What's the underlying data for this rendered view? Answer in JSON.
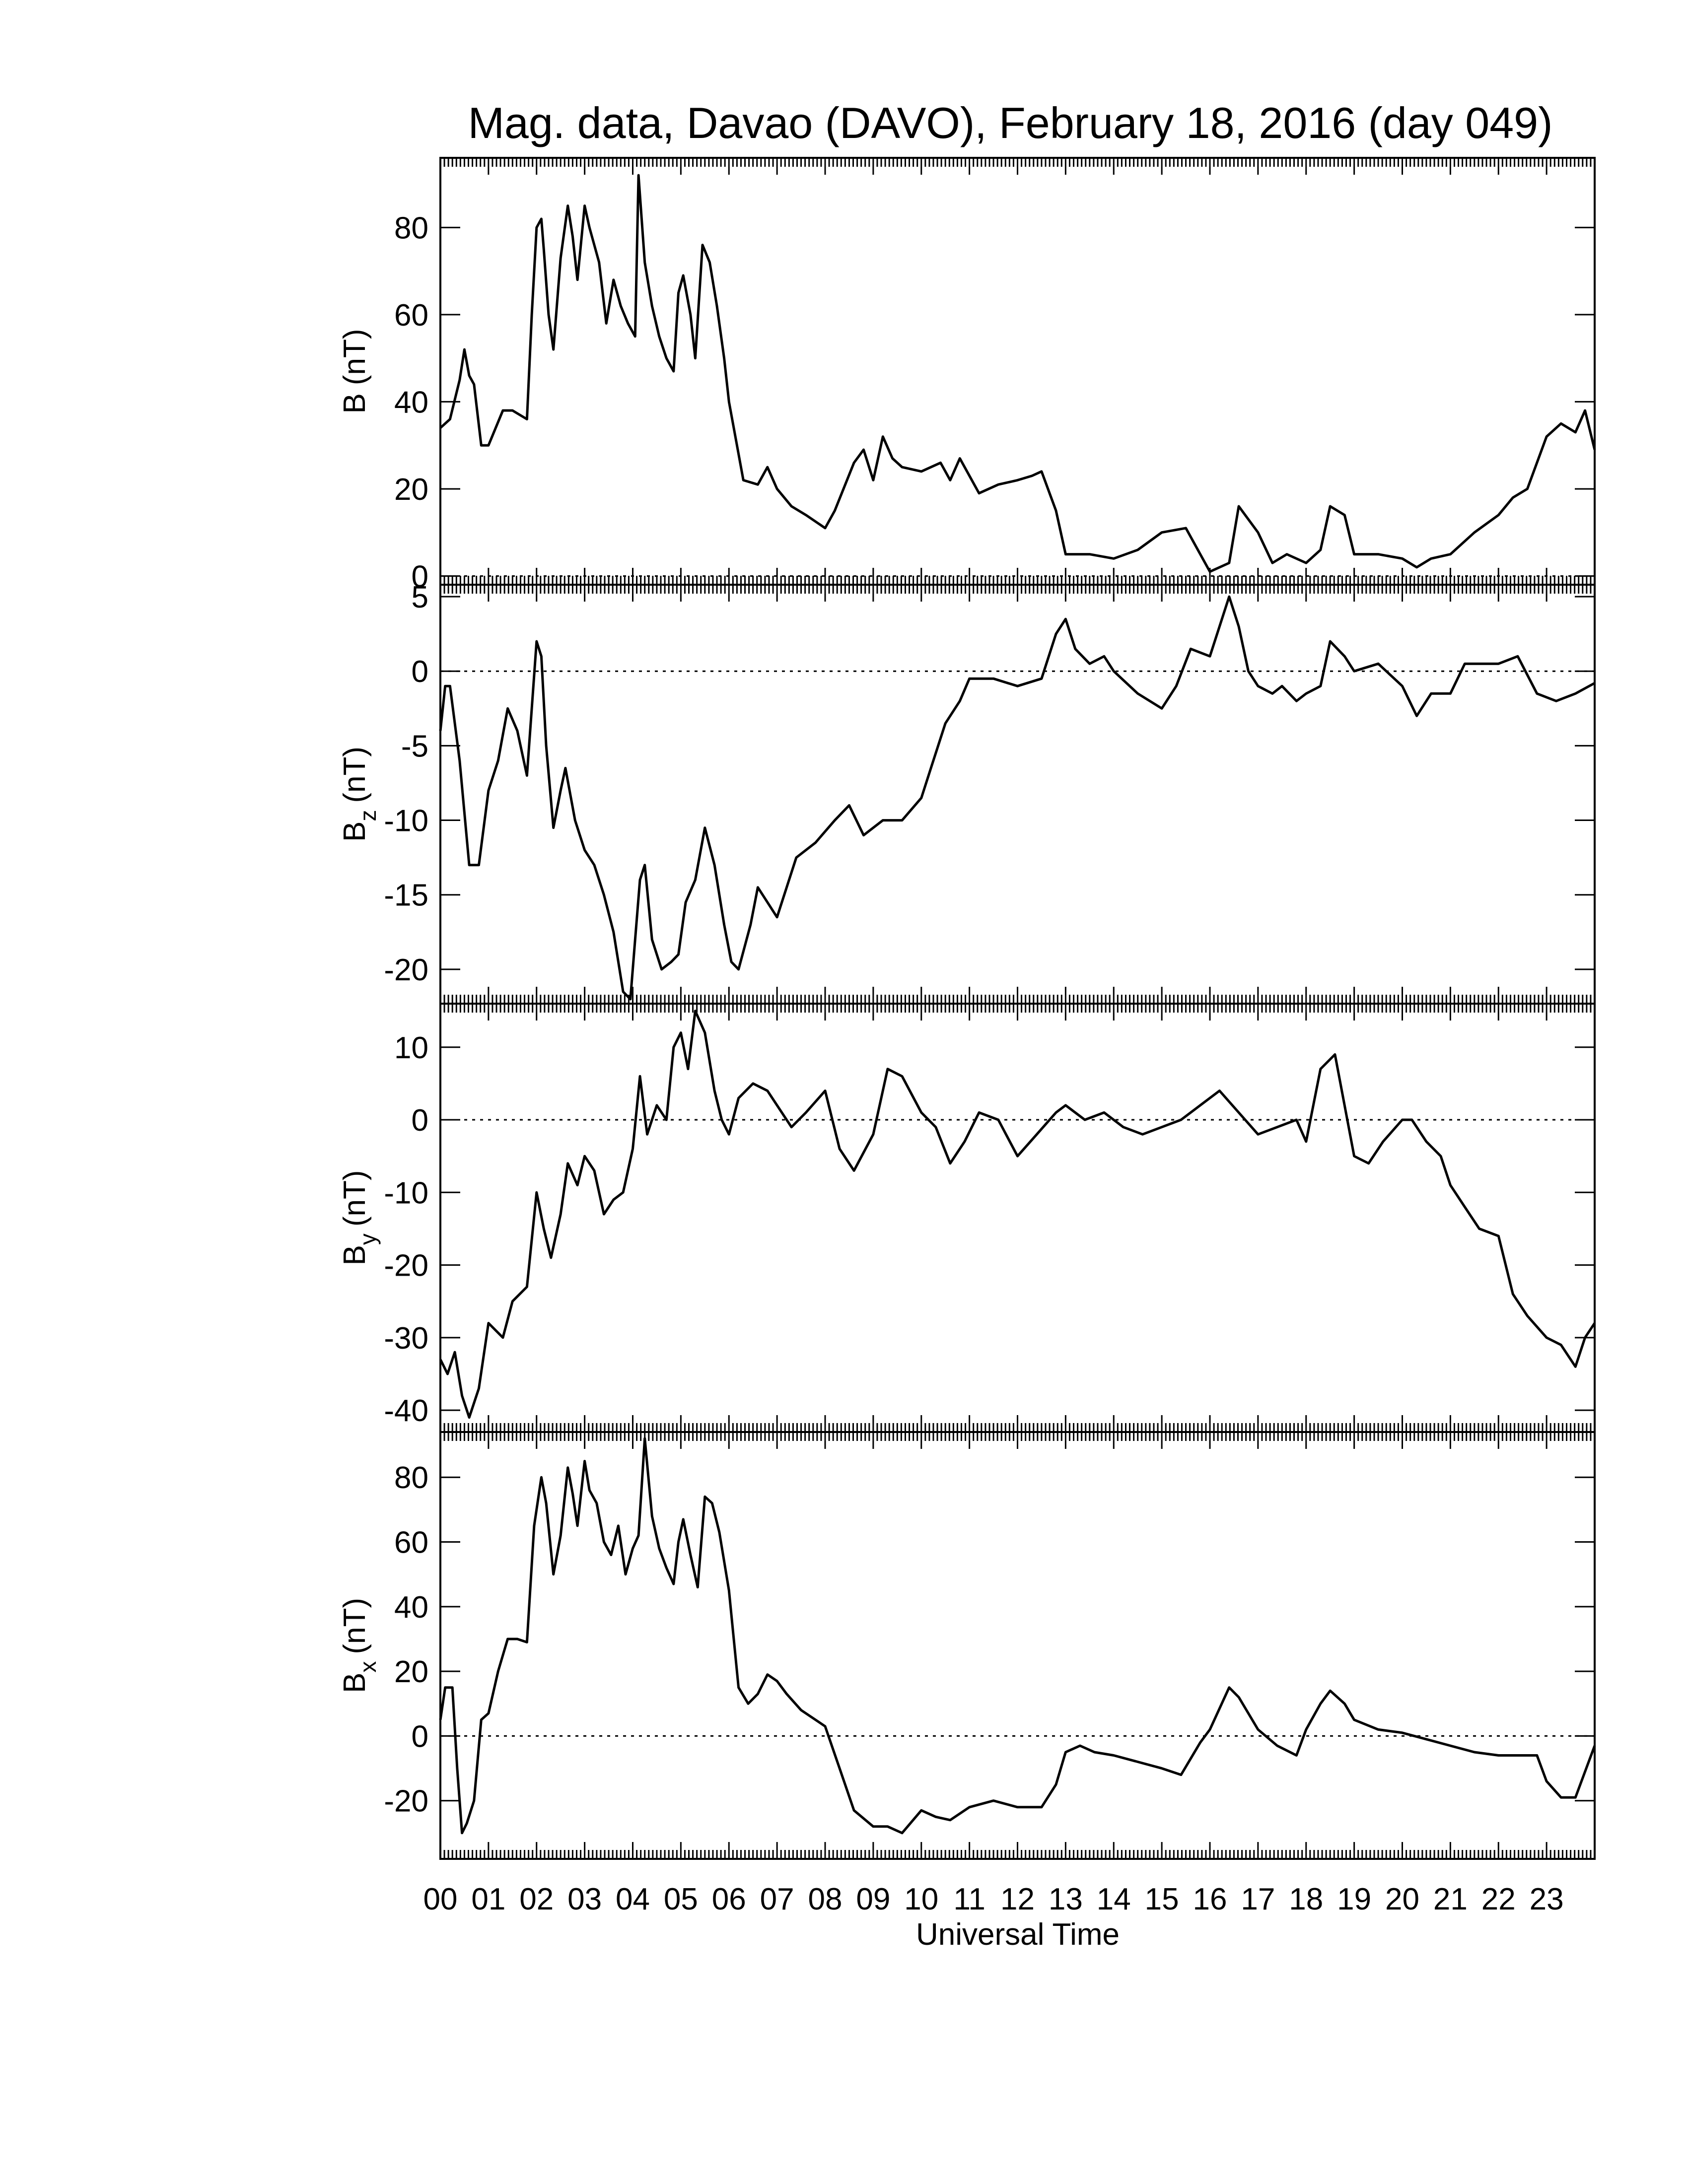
{
  "chart_data": {
    "type": "line",
    "title": "Mag. data, Davao (DAVO), February 18, 2016 (day 049)",
    "xlabel": "Universal Time",
    "xlim": [
      0,
      24
    ],
    "x_tick_labels": [
      "00",
      "01",
      "02",
      "03",
      "04",
      "05",
      "06",
      "07",
      "08",
      "09",
      "10",
      "11",
      "12",
      "13",
      "14",
      "15",
      "16",
      "17",
      "18",
      "19",
      "20",
      "21",
      "22",
      "23"
    ],
    "panels": [
      {
        "ylabel_main": "B",
        "ylabel_sub": "",
        "ylabel_unit": "(nT)",
        "ylim": [
          -2,
          96
        ],
        "yticks": [
          0,
          20,
          40,
          60,
          80
        ],
        "zero_line": true,
        "x": [
          0.0,
          0.2,
          0.4,
          0.5,
          0.6,
          0.7,
          0.85,
          1.0,
          1.3,
          1.5,
          1.8,
          1.9,
          2.0,
          2.1,
          2.15,
          2.25,
          2.35,
          2.5,
          2.65,
          2.75,
          2.85,
          3.0,
          3.1,
          3.2,
          3.3,
          3.45,
          3.6,
          3.75,
          3.9,
          4.05,
          4.12,
          4.25,
          4.4,
          4.55,
          4.7,
          4.85,
          4.95,
          5.05,
          5.2,
          5.3,
          5.45,
          5.6,
          5.75,
          5.9,
          6.0,
          6.3,
          6.6,
          6.8,
          7.0,
          7.3,
          7.6,
          8.0,
          8.2,
          8.6,
          8.8,
          9.0,
          9.2,
          9.4,
          9.6,
          10.0,
          10.4,
          10.6,
          10.8,
          11.2,
          11.6,
          12.0,
          12.3,
          12.5,
          12.8,
          13.0,
          13.5,
          14.0,
          14.5,
          15.0,
          15.5,
          15.8,
          16.0,
          16.4,
          16.6,
          17.0,
          17.3,
          17.6,
          18.0,
          18.3,
          18.5,
          18.8,
          19.0,
          19.5,
          20.0,
          20.3,
          20.6,
          21.0,
          21.5,
          22.0,
          22.3,
          22.6,
          23.0,
          23.3,
          23.6,
          23.8,
          24.0
        ],
        "values": [
          34,
          36,
          45,
          52,
          46,
          44,
          30,
          30,
          38,
          38,
          36,
          60,
          80,
          82,
          75,
          60,
          52,
          73,
          85,
          78,
          68,
          85,
          80,
          76,
          72,
          58,
          68,
          62,
          58,
          55,
          92,
          72,
          62,
          55,
          50,
          47,
          65,
          69,
          60,
          50,
          76,
          72,
          62,
          50,
          40,
          22,
          21,
          25,
          20,
          16,
          14,
          11,
          15,
          26,
          29,
          22,
          32,
          27,
          25,
          24,
          26,
          22,
          27,
          19,
          21,
          22,
          23,
          24,
          15,
          5,
          5,
          4,
          6,
          10,
          11,
          5,
          1,
          3,
          16,
          10,
          3,
          5,
          3,
          6,
          16,
          14,
          5,
          5,
          4,
          2,
          4,
          5,
          10,
          14,
          18,
          20,
          32,
          35,
          33,
          38,
          29
        ]
      },
      {
        "ylabel_main": "B",
        "ylabel_sub": "z",
        "ylabel_unit": "(nT)",
        "ylim": [
          -22.3,
          5.8
        ],
        "yticks": [
          5,
          0,
          -5,
          -10,
          -15,
          -20
        ],
        "zero_line": true,
        "x": [
          0.0,
          0.1,
          0.2,
          0.4,
          0.6,
          0.8,
          1.0,
          1.2,
          1.4,
          1.6,
          1.8,
          2.0,
          2.1,
          2.2,
          2.35,
          2.5,
          2.6,
          2.8,
          3.0,
          3.2,
          3.4,
          3.6,
          3.8,
          3.95,
          4.05,
          4.15,
          4.25,
          4.4,
          4.6,
          4.8,
          4.95,
          5.1,
          5.3,
          5.5,
          5.7,
          5.9,
          6.05,
          6.2,
          6.45,
          6.6,
          6.8,
          7.0,
          7.4,
          7.8,
          8.2,
          8.5,
          8.8,
          9.2,
          9.6,
          10.0,
          10.2,
          10.5,
          10.8,
          11.0,
          11.5,
          12.0,
          12.5,
          12.8,
          13.0,
          13.2,
          13.5,
          13.8,
          14.0,
          14.5,
          15.0,
          15.3,
          15.6,
          16.0,
          16.2,
          16.4,
          16.6,
          16.8,
          17.0,
          17.3,
          17.5,
          17.8,
          18.0,
          18.3,
          18.5,
          18.8,
          19.0,
          19.5,
          20.0,
          20.3,
          20.6,
          21.0,
          21.3,
          21.6,
          22.0,
          22.4,
          22.8,
          23.2,
          23.6,
          24.0
        ],
        "values": [
          -4,
          -1,
          -1,
          -6,
          -13,
          -13,
          -8,
          -6,
          -2.5,
          -4,
          -7,
          2,
          1,
          -5,
          -10.5,
          -8,
          -6.5,
          -10,
          -12,
          -13,
          -15,
          -17.5,
          -21.5,
          -22,
          -18,
          -14,
          -13,
          -18,
          -20,
          -19.5,
          -19,
          -15.5,
          -14,
          -10.5,
          -13,
          -17,
          -19.5,
          -20,
          -17,
          -14.5,
          -15.5,
          -16.5,
          -12.5,
          -11.5,
          -10,
          -9,
          -11,
          -10,
          -10,
          -8.5,
          -6.5,
          -3.5,
          -2,
          -0.5,
          -0.5,
          -1,
          -0.5,
          2.5,
          3.5,
          1.5,
          0.5,
          1,
          0,
          -1.5,
          -2.5,
          -1,
          1.5,
          1,
          3,
          5,
          3,
          0,
          -1,
          -1.5,
          -1,
          -2,
          -1.5,
          -1,
          2,
          1,
          0,
          0.5,
          -1,
          -3,
          -1.5,
          -1.5,
          0.5,
          0.5,
          0.5,
          1,
          -1.5,
          -2,
          -1.5,
          -0.8
        ]
      },
      {
        "ylabel_main": "B",
        "ylabel_sub": "y",
        "ylabel_unit": "(nT)",
        "ylim": [
          -43,
          16
        ],
        "yticks": [
          10,
          0,
          -10,
          -20,
          -30,
          -40
        ],
        "zero_line": true,
        "x": [
          0.0,
          0.15,
          0.3,
          0.45,
          0.6,
          0.8,
          1.0,
          1.3,
          1.5,
          1.8,
          2.0,
          2.15,
          2.3,
          2.5,
          2.65,
          2.85,
          3.0,
          3.2,
          3.4,
          3.6,
          3.8,
          4.0,
          4.15,
          4.3,
          4.5,
          4.7,
          4.85,
          5.0,
          5.15,
          5.3,
          5.5,
          5.7,
          5.85,
          6.0,
          6.2,
          6.5,
          6.8,
          7.0,
          7.3,
          7.6,
          8.0,
          8.3,
          8.6,
          9.0,
          9.3,
          9.6,
          10.0,
          10.3,
          10.6,
          10.9,
          11.2,
          11.6,
          12.0,
          12.4,
          12.8,
          13.0,
          13.4,
          13.8,
          14.2,
          14.6,
          15.0,
          15.4,
          15.8,
          16.2,
          16.6,
          17.0,
          17.4,
          17.8,
          18.0,
          18.3,
          18.6,
          19.0,
          19.3,
          19.6,
          20.0,
          20.2,
          20.5,
          20.8,
          21.0,
          21.3,
          21.6,
          22.0,
          22.3,
          22.6,
          23.0,
          23.3,
          23.6,
          23.8,
          24.0
        ],
        "values": [
          -33,
          -35,
          -32,
          -38,
          -41,
          -37,
          -28,
          -30,
          -25,
          -23,
          -10,
          -15,
          -19,
          -13,
          -6,
          -9,
          -5,
          -7,
          -13,
          -11,
          -10,
          -4,
          6,
          -2,
          2,
          0,
          10,
          12,
          7,
          15,
          12,
          4,
          0,
          -2,
          3,
          5,
          4,
          2,
          -1,
          1,
          4,
          -4,
          -7,
          -2,
          7,
          6,
          1,
          -1,
          -6,
          -3,
          1,
          0,
          -5,
          -2,
          1,
          2,
          0,
          1,
          -1,
          -2,
          -1,
          0,
          2,
          4,
          1,
          -2,
          -1,
          0,
          -3,
          7,
          9,
          -5,
          -6,
          -3,
          0,
          0,
          -3,
          -5,
          -9,
          -12,
          -15,
          -16,
          -24,
          -27,
          -30,
          -31,
          -34,
          -30,
          -28
        ]
      },
      {
        "ylabel_main": "B",
        "ylabel_sub": "x",
        "ylabel_unit": "(nT)",
        "ylim": [
          -38,
          94
        ],
        "yticks": [
          80,
          60,
          40,
          20,
          0,
          -20
        ],
        "zero_line": true,
        "x": [
          0.0,
          0.1,
          0.25,
          0.35,
          0.45,
          0.55,
          0.7,
          0.85,
          1.0,
          1.2,
          1.4,
          1.6,
          1.8,
          1.95,
          2.1,
          2.2,
          2.35,
          2.5,
          2.65,
          2.75,
          2.85,
          3.0,
          3.1,
          3.25,
          3.4,
          3.55,
          3.7,
          3.85,
          4.0,
          4.12,
          4.25,
          4.4,
          4.55,
          4.7,
          4.85,
          4.95,
          5.05,
          5.2,
          5.35,
          5.5,
          5.65,
          5.8,
          6.0,
          6.2,
          6.4,
          6.6,
          6.8,
          7.0,
          7.2,
          7.5,
          7.8,
          8.0,
          8.3,
          8.6,
          9.0,
          9.3,
          9.6,
          10.0,
          10.3,
          10.6,
          11.0,
          11.5,
          12.0,
          12.5,
          12.8,
          13.0,
          13.3,
          13.6,
          14.0,
          14.5,
          15.0,
          15.4,
          15.8,
          16.0,
          16.4,
          16.6,
          17.0,
          17.4,
          17.8,
          18.0,
          18.3,
          18.5,
          18.8,
          19.0,
          19.5,
          20.0,
          20.5,
          21.0,
          21.5,
          22.0,
          22.5,
          22.8,
          23.0,
          23.3,
          23.6,
          24.0
        ],
        "values": [
          5,
          15,
          15,
          -10,
          -30,
          -27,
          -20,
          5,
          7,
          20,
          30,
          30,
          29,
          65,
          80,
          72,
          50,
          62,
          83,
          75,
          65,
          85,
          76,
          72,
          60,
          56,
          65,
          50,
          58,
          62,
          92,
          68,
          58,
          52,
          47,
          60,
          67,
          56,
          46,
          74,
          72,
          63,
          45,
          15,
          10,
          13,
          19,
          17,
          13,
          8,
          5,
          3,
          -10,
          -23,
          -28,
          -28,
          -30,
          -23,
          -25,
          -26,
          -22,
          -20,
          -22,
          -22,
          -15,
          -5,
          -3,
          -5,
          -6,
          -8,
          -10,
          -12,
          -2,
          2,
          15,
          12,
          2,
          -3,
          -6,
          2,
          10,
          14,
          10,
          5,
          2,
          1,
          -1,
          -3,
          -5,
          -6,
          -6,
          -6,
          -14,
          -19,
          -19,
          -3
        ]
      }
    ]
  }
}
